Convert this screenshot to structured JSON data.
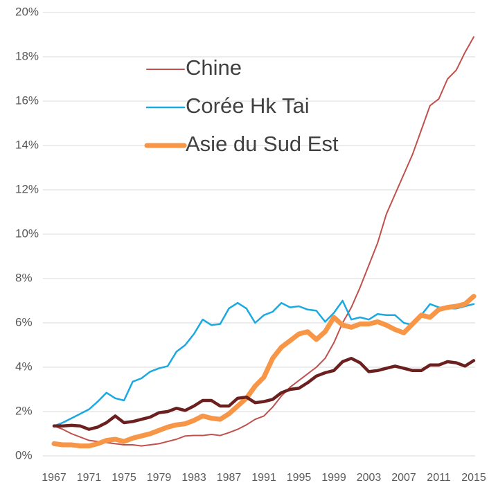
{
  "chart_data": {
    "type": "line",
    "x": [
      1967,
      1968,
      1969,
      1970,
      1971,
      1972,
      1973,
      1974,
      1975,
      1976,
      1977,
      1978,
      1979,
      1980,
      1981,
      1982,
      1983,
      1984,
      1985,
      1986,
      1987,
      1988,
      1989,
      1990,
      1991,
      1992,
      1993,
      1994,
      1995,
      1996,
      1997,
      1998,
      1999,
      2000,
      2001,
      2002,
      2003,
      2004,
      2005,
      2006,
      2007,
      2008,
      2009,
      2010,
      2011,
      2012,
      2013,
      2014,
      2015
    ],
    "xlim": [
      1967,
      2015
    ],
    "xticks": [
      1967,
      1971,
      1975,
      1979,
      1983,
      1987,
      1991,
      1995,
      1999,
      2003,
      2007,
      2011,
      2015
    ],
    "ylim": [
      0,
      20
    ],
    "yticks": [
      {
        "value": 0,
        "label": "0%"
      },
      {
        "value": 2,
        "label": "2%"
      },
      {
        "value": 4,
        "label": "4%"
      },
      {
        "value": 6,
        "label": "6%"
      },
      {
        "value": 8,
        "label": "8%"
      },
      {
        "value": 10,
        "label": "10%"
      },
      {
        "value": 12,
        "label": "12%"
      },
      {
        "value": 14,
        "label": "14%"
      },
      {
        "value": 16,
        "label": "16%"
      },
      {
        "value": 18,
        "label": "18%"
      },
      {
        "value": 20,
        "label": "20%"
      }
    ],
    "grid": true,
    "legend": "upper left",
    "series": [
      {
        "name": "Chine",
        "color": "#c0504d",
        "line_width": 2,
        "values": [
          1.35,
          1.2,
          1.0,
          0.85,
          0.7,
          0.65,
          0.6,
          0.55,
          0.5,
          0.5,
          0.45,
          0.5,
          0.55,
          0.65,
          0.75,
          0.9,
          0.92,
          0.92,
          0.97,
          0.92,
          1.05,
          1.2,
          1.4,
          1.65,
          1.8,
          2.2,
          2.7,
          3.1,
          3.4,
          3.7,
          4.0,
          4.4,
          5.1,
          6.0,
          6.7,
          7.6,
          8.6,
          9.6,
          10.9,
          11.8,
          12.7,
          13.6,
          14.7,
          15.8,
          16.1,
          17.0,
          17.4,
          18.2,
          18.9
        ]
      },
      {
        "name": "Corée Hk Tai",
        "color": "#1aa9e0",
        "line_width": 2.5,
        "values": [
          1.35,
          1.5,
          1.7,
          1.9,
          2.1,
          2.45,
          2.85,
          2.6,
          2.5,
          3.35,
          3.5,
          3.8,
          3.95,
          4.05,
          4.7,
          5.0,
          5.5,
          6.15,
          5.9,
          5.95,
          6.65,
          6.9,
          6.65,
          6.0,
          6.35,
          6.5,
          6.9,
          6.7,
          6.75,
          6.6,
          6.55,
          6.05,
          6.45,
          7.0,
          6.15,
          6.25,
          6.15,
          6.4,
          6.35,
          6.35,
          6.0,
          5.9,
          6.35,
          6.85,
          6.7,
          6.65,
          6.65,
          6.75,
          6.85
        ]
      },
      {
        "name": "Asie du Sud Est",
        "color": "#f79646",
        "line_width": 7,
        "values": [
          0.55,
          0.5,
          0.5,
          0.45,
          0.45,
          0.55,
          0.7,
          0.75,
          0.65,
          0.8,
          0.9,
          1.0,
          1.15,
          1.3,
          1.4,
          1.45,
          1.6,
          1.8,
          1.7,
          1.65,
          1.9,
          2.25,
          2.6,
          3.15,
          3.55,
          4.4,
          4.9,
          5.2,
          5.5,
          5.6,
          5.25,
          5.6,
          6.25,
          5.9,
          5.8,
          5.95,
          5.95,
          6.05,
          5.9,
          5.7,
          5.55,
          5.95,
          6.35,
          6.25,
          6.6,
          6.7,
          6.75,
          6.85,
          7.2
        ]
      },
      {
        "color": "#6b1f1f",
        "line_width": 4.5,
        "values": [
          1.35,
          1.35,
          1.38,
          1.35,
          1.2,
          1.3,
          1.5,
          1.8,
          1.5,
          1.55,
          1.65,
          1.75,
          1.95,
          2.0,
          2.15,
          2.05,
          2.25,
          2.5,
          2.5,
          2.25,
          2.25,
          2.6,
          2.65,
          2.4,
          2.45,
          2.55,
          2.85,
          3.0,
          3.05,
          3.3,
          3.6,
          3.75,
          3.85,
          4.25,
          4.4,
          4.2,
          3.8,
          3.85,
          3.95,
          4.05,
          3.95,
          3.85,
          3.85,
          4.1,
          4.1,
          4.25,
          4.2,
          4.05,
          4.3
        ]
      }
    ]
  }
}
